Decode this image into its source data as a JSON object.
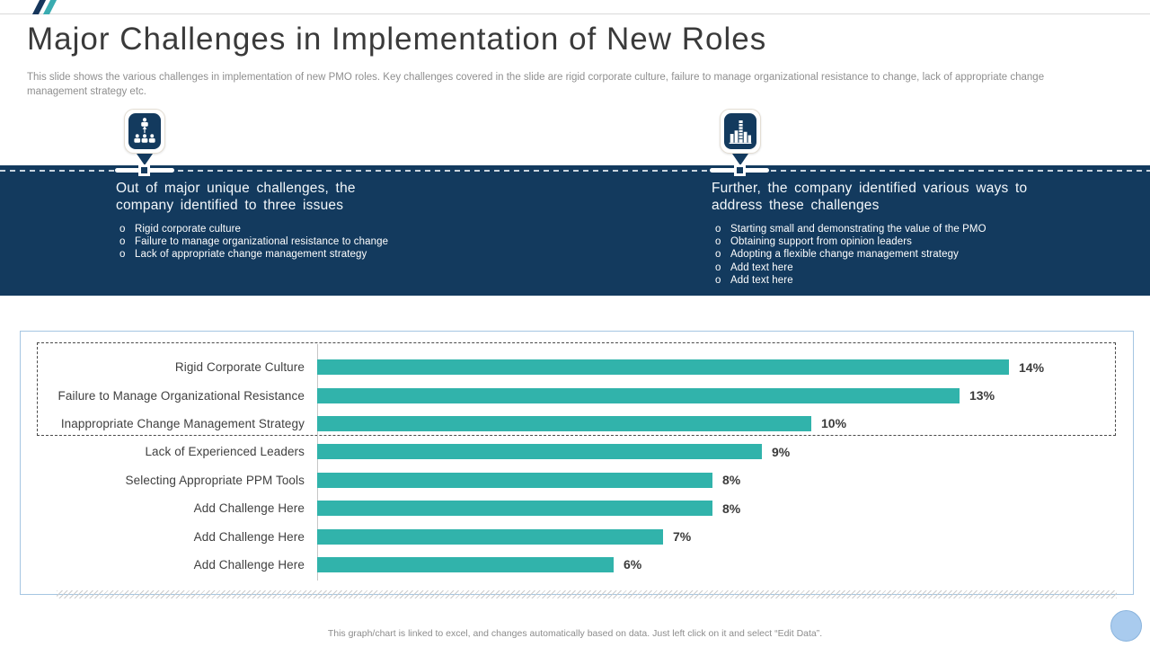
{
  "slide": {
    "title": "Major Challenges in Implementation of New Roles",
    "subtitle": "This slide shows the various challenges in implementation of new PMO  roles. Key challenges covered in the slide are rigid corporate culture, failure to manage organizational resistance to change, lack of appropriate change management strategy etc.",
    "footer_note": "This graph/chart is linked to excel, and changes automatically based on data. Just left click on it and select “Edit Data”."
  },
  "callouts": {
    "bullet_marker": "o",
    "left": {
      "icon": "org-chart-icon",
      "heading": "Out of major unique challenges, the company identified to three issues",
      "bullets": [
        "Rigid corporate culture",
        "Failure to manage organizational resistance to change",
        "Lack of appropriate change management strategy"
      ]
    },
    "right": {
      "icon": "bar-chart-icon",
      "heading": "Further, the company identified various ways to address these challenges",
      "bullets": [
        "Starting small and demonstrating the value of the PMO",
        "Obtaining support from opinion leaders",
        "Adopting a flexible change management strategy",
        "Add text here",
        "Add text here"
      ]
    }
  },
  "chart_data": {
    "type": "bar",
    "orientation": "horizontal",
    "title": "",
    "xlabel": "",
    "ylabel": "",
    "categories": [
      "Rigid Corporate Culture",
      "Failure to Manage Organizational Resistance",
      "Inappropriate Change Management Strategy",
      "Lack of Experienced Leaders",
      "Selecting Appropriate PPM Tools",
      "Add Challenge Here",
      "Add Challenge Here",
      "Add Challenge Here"
    ],
    "values": [
      14,
      13,
      10,
      9,
      8,
      8,
      7,
      6
    ],
    "value_labels": [
      "14%",
      "13%",
      "10%",
      "9%",
      "8%",
      "8%",
      "7%",
      "6%"
    ],
    "unit": "percent",
    "xlim": [
      0,
      16
    ],
    "grid": false,
    "legend": "none",
    "bar_color": "#31B3AB",
    "highlighted_top_rows": 3
  },
  "colors": {
    "band_navy": "#133A5E",
    "bar_teal": "#31B3AB",
    "slash_navy": "#16365C",
    "slash_teal": "#3AACB1",
    "chart_border_blue": "#A5C6E2",
    "circle_fill": "#A9CBEE"
  }
}
